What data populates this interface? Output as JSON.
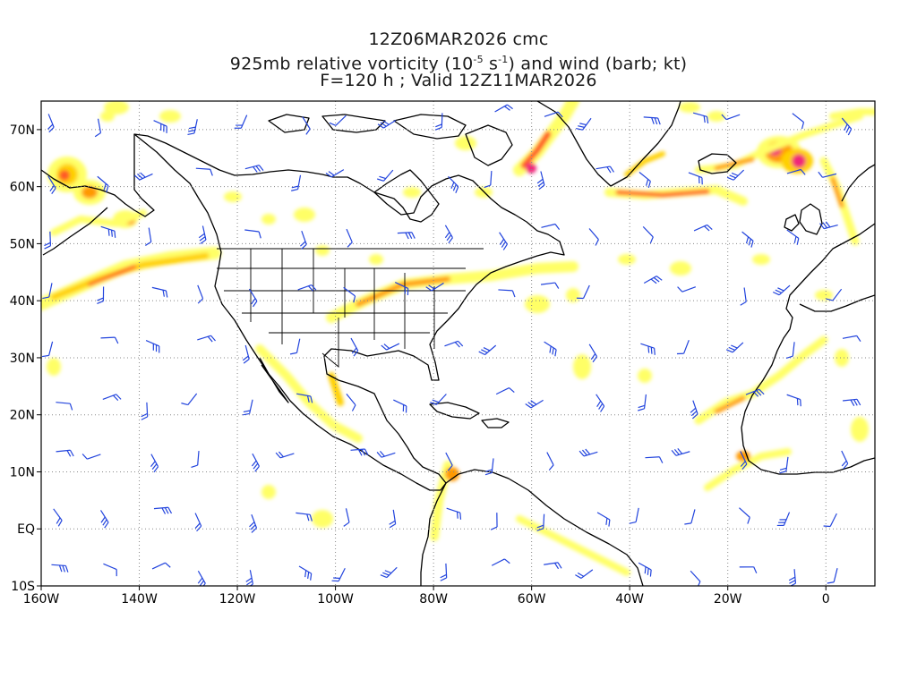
{
  "header": {
    "line1": "12Z06MAR2026 cmc",
    "line2_pre": "925mb relative vorticity (10",
    "line2_sup1": "-5",
    "line2_mid": " s",
    "line2_sup2": "-1",
    "line2_post": ") and wind (barb; kt)",
    "line3": "F=120 h ; Valid 12Z11MAR2026"
  },
  "axes": {
    "lon_labels": [
      "160W",
      "140W",
      "120W",
      "100W",
      "80W",
      "60W",
      "40W",
      "20W",
      "0"
    ],
    "lat_labels": [
      "70N",
      "60N",
      "50N",
      "40N",
      "30N",
      "20N",
      "10N",
      "EQ",
      "10S"
    ],
    "lon_values": [
      -160,
      -140,
      -120,
      -100,
      -80,
      -60,
      -40,
      -20,
      0
    ],
    "lat_values": [
      70,
      60,
      50,
      40,
      30,
      20,
      10,
      0,
      -10
    ],
    "lon_range": [
      -160,
      10
    ],
    "lat_range": [
      -10,
      75
    ],
    "grid": "dotted"
  },
  "colors": {
    "vort_levels": [
      "#ffff66",
      "#ffd000",
      "#ff9900",
      "#ff5a28",
      "#f0287a"
    ],
    "barb": "#2244dd",
    "coast": "#000000",
    "grid": "#888888"
  }
}
